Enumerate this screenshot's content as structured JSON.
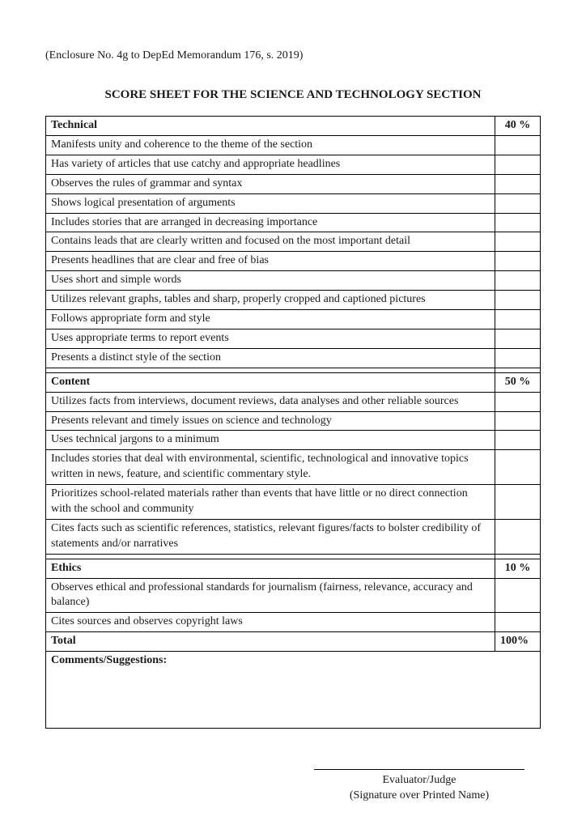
{
  "enclosure_text": "(Enclosure No. 4g to DepEd Memorandum 176, s. 2019)",
  "title": "SCORE SHEET FOR THE SCIENCE AND TECHNOLOGY SECTION",
  "sections": {
    "technical": {
      "label": "Technical",
      "pct": "40 %",
      "items": [
        "Manifests unity and coherence to the theme of the section",
        "Has variety of articles that use catchy and appropriate headlines",
        "Observes the rules of grammar and syntax",
        "Shows logical presentation of arguments",
        "Includes stories that are arranged in decreasing importance",
        "Contains leads that are clearly written and focused on the most important detail",
        "Presents headlines that are clear and free of bias",
        "Uses short and simple words",
        "Utilizes relevant graphs, tables and sharp, properly cropped and captioned pictures",
        "Follows appropriate form and style",
        "Uses appropriate terms to report events",
        "Presents a distinct style of the section"
      ]
    },
    "content": {
      "label": "Content",
      "pct": "50 %",
      "items": [
        "Utilizes facts from interviews, document reviews, data analyses and other reliable sources",
        "Presents relevant and timely issues on science and technology",
        "Uses technical jargons to a minimum",
        "Includes stories that deal with environmental, scientific, technological and innovative topics written in news, feature, and scientific commentary style.",
        "Prioritizes school-related materials rather than events that have little or no direct connection with the school and community",
        "Cites facts such as scientific references, statistics, relevant figures/facts to bolster credibility of statements and/or narratives"
      ]
    },
    "ethics": {
      "label": "Ethics",
      "pct": "10 %",
      "items": [
        "Observes ethical and professional standards  for journalism (fairness, relevance, accuracy and balance)",
        "Cites sources and observes copyright laws"
      ]
    }
  },
  "total": {
    "label": "Total",
    "pct": "100%"
  },
  "comments_label": "Comments/Suggestions:",
  "signature": {
    "line1": "Evaluator/Judge",
    "line2": "(Signature over Printed Name)"
  }
}
